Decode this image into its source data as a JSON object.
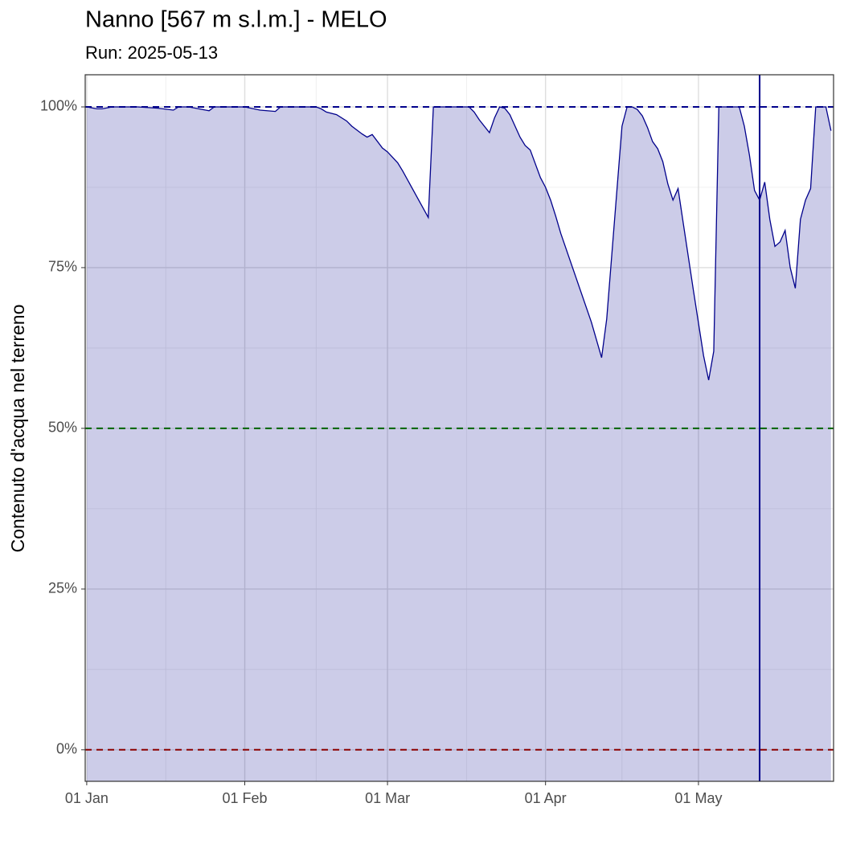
{
  "chart_data": {
    "type": "area",
    "title": "Nanno [567 m s.l.m.] - MELO",
    "subtitle": "Run: 2025-05-13",
    "ylabel": "Contenuto d'acqua nel terreno",
    "x": [
      0,
      2,
      3,
      5,
      10,
      14,
      17,
      18,
      20,
      22,
      24,
      25,
      31,
      34,
      37,
      38,
      45,
      46,
      47,
      49,
      51,
      52,
      54,
      55,
      56,
      58,
      59,
      61,
      62,
      67,
      68,
      75,
      76,
      77,
      79,
      80,
      81,
      82,
      83,
      85,
      86,
      87,
      89,
      90,
      91,
      92,
      93,
      99,
      101,
      102,
      103,
      104,
      105,
      106,
      107,
      108,
      109,
      110,
      111,
      112,
      113,
      114,
      115,
      116,
      117,
      119,
      121,
      122,
      123,
      124,
      128,
      129,
      130,
      131,
      132,
      133,
      134,
      135,
      136,
      137,
      138,
      139,
      140,
      141,
      142,
      143,
      145,
      146
    ],
    "values": [
      100,
      99.7,
      99.7,
      100,
      100,
      99.8,
      99.5,
      100,
      100,
      99.7,
      99.4,
      100,
      100,
      99.5,
      99.3,
      100,
      100,
      99.7,
      99.2,
      98.8,
      97.8,
      97,
      95.8,
      95.3,
      95.7,
      93.6,
      93,
      91.3,
      90,
      82.8,
      100,
      100,
      99.2,
      98,
      96,
      98.3,
      100,
      99.8,
      98.8,
      95.3,
      94,
      93.3,
      89,
      87.5,
      85.5,
      83,
      80.3,
      66.5,
      61,
      67,
      77,
      87,
      97,
      100,
      100,
      99.6,
      98.6,
      96.8,
      94.6,
      93.5,
      91.5,
      88,
      85.5,
      87.3,
      82,
      71.5,
      61.3,
      57.5,
      62,
      100,
      100,
      97,
      92.5,
      87,
      85.5,
      88.3,
      82.5,
      78.3,
      79,
      80.8,
      75,
      71.8,
      82.5,
      85.5,
      87.3,
      100,
      100,
      96.3
    ],
    "color": "#00008b",
    "fill_color": "rgba(0,0,139,0.2)",
    "xlim": [
      -0.3,
      146.5
    ],
    "ylim": [
      -4.9,
      105
    ],
    "xticks": [
      {
        "value": 0,
        "label": "01 Jan"
      },
      {
        "value": 31,
        "label": "01 Feb"
      },
      {
        "value": 59,
        "label": "01 Mar"
      },
      {
        "value": 90,
        "label": "01 Apr"
      },
      {
        "value": 120,
        "label": "01 May"
      }
    ],
    "yticks": [
      {
        "value": 0,
        "label": "0%"
      },
      {
        "value": 25,
        "label": "25%"
      },
      {
        "value": 50,
        "label": "50%"
      },
      {
        "value": 75,
        "label": "75%"
      },
      {
        "value": 100,
        "label": "100%"
      }
    ],
    "grid": true,
    "hlines": [
      {
        "value": 100,
        "color": "#00008b"
      },
      {
        "value": 50,
        "color": "#006400"
      },
      {
        "value": 0,
        "color": "#8b0000"
      }
    ],
    "vline": {
      "value": 132,
      "color": "#00008b"
    }
  }
}
